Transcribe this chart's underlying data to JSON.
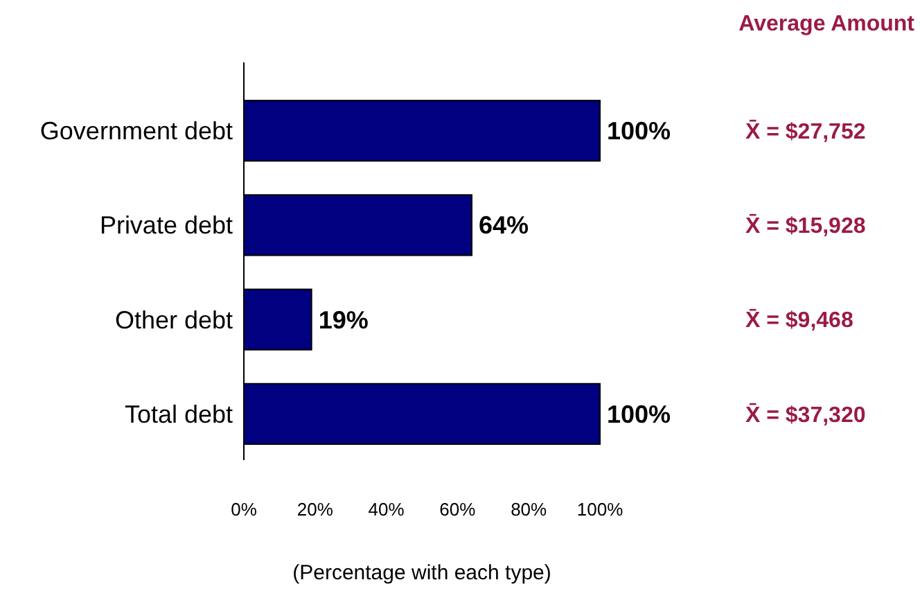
{
  "chart_data": {
    "type": "bar",
    "orientation": "horizontal",
    "categories": [
      "Government debt",
      "Private debt",
      "Other debt",
      "Total debt"
    ],
    "values": [
      100,
      64,
      19,
      100
    ],
    "color": "#000080",
    "value_labels": [
      "100%",
      "64%",
      "19%",
      "100%"
    ],
    "xlim": [
      0,
      100
    ],
    "xticks": [
      {
        "value": 0,
        "label": "0%"
      },
      {
        "value": 20,
        "label": "20%"
      },
      {
        "value": 40,
        "label": "40%"
      },
      {
        "value": 60,
        "label": "60%"
      },
      {
        "value": 80,
        "label": "80%"
      },
      {
        "value": 100,
        "label": "100%"
      }
    ],
    "xlabel": "(Percentage with each type)",
    "grid": false,
    "annotations": [
      "Average Amount",
      "X̄ = $27,752",
      "X̄ = $15,928",
      "X̄ = $9,468",
      "X̄ = $37,320"
    ]
  }
}
